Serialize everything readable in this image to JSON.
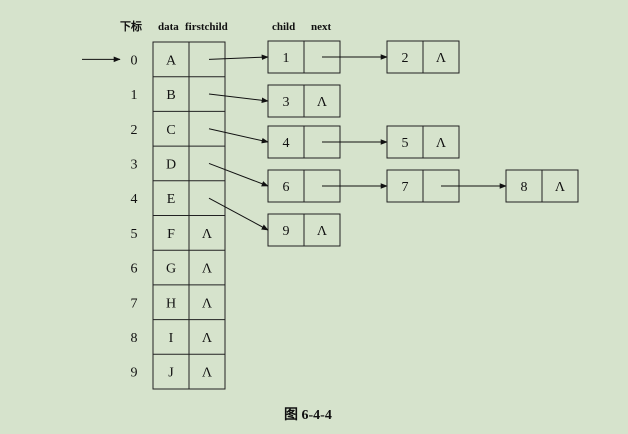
{
  "headers": {
    "index": "下标",
    "data": "data",
    "firstchild": "firstchild",
    "child": "child",
    "next": "next"
  },
  "caption": "图 6-4-4",
  "nil_symbol": "Λ",
  "pointer_marks_index": 0,
  "table": [
    {
      "index": "0",
      "data": "A",
      "firstchild": 0
    },
    {
      "index": "1",
      "data": "B",
      "firstchild": 2
    },
    {
      "index": "2",
      "data": "C",
      "firstchild": 3
    },
    {
      "index": "3",
      "data": "D",
      "firstchild": 5
    },
    {
      "index": "4",
      "data": "E",
      "firstchild": 8
    },
    {
      "index": "5",
      "data": "F",
      "firstchild": null
    },
    {
      "index": "6",
      "data": "G",
      "firstchild": null
    },
    {
      "index": "7",
      "data": "H",
      "firstchild": null
    },
    {
      "index": "8",
      "data": "I",
      "firstchild": null
    },
    {
      "index": "9",
      "data": "J",
      "firstchild": null
    }
  ],
  "child_nodes": [
    {
      "child": "1",
      "next": 1
    },
    {
      "child": "2",
      "next": null
    },
    {
      "child": "3",
      "next": null
    },
    {
      "child": "4",
      "next": 4
    },
    {
      "child": "5",
      "next": null
    },
    {
      "child": "6",
      "next": 6
    },
    {
      "child": "7",
      "next": 7
    },
    {
      "child": "8",
      "next": null
    },
    {
      "child": "9",
      "next": null
    }
  ]
}
